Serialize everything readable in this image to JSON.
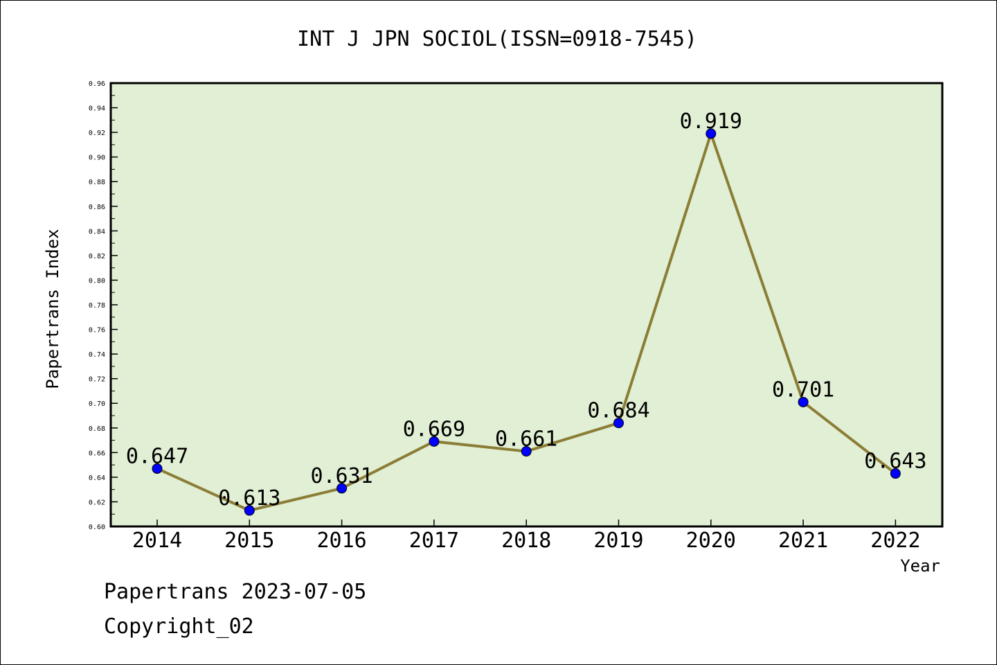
{
  "chart_data": {
    "type": "line",
    "title": "INT J JPN SOCIOL(ISSN=0918-7545)",
    "xlabel": "Year",
    "ylabel": "Papertrans Index",
    "categories": [
      "2014",
      "2015",
      "2016",
      "2017",
      "2018",
      "2019",
      "2020",
      "2021",
      "2022"
    ],
    "values": [
      0.647,
      0.613,
      0.631,
      0.669,
      0.661,
      0.684,
      0.919,
      0.701,
      0.643
    ],
    "data_labels": [
      "0.647",
      "0.613",
      "0.631",
      "0.669",
      "0.661",
      "0.684",
      "0.919",
      "0.701",
      "0.643"
    ],
    "ylim": [
      0.6,
      0.96
    ],
    "yticks": [
      "0.60",
      "0.62",
      "0.64",
      "0.66",
      "0.68",
      "0.70",
      "0.72",
      "0.74",
      "0.76",
      "0.78",
      "0.80",
      "0.82",
      "0.84",
      "0.86",
      "0.88",
      "0.90",
      "0.92",
      "0.94",
      "0.96"
    ],
    "grid": false,
    "colors": {
      "plot_background": "#e1efd4",
      "line": "#8b7d36",
      "marker": "#0000ff"
    }
  },
  "footer": {
    "date_line": "Papertrans 2023-07-05",
    "copyright": "Copyright_02"
  }
}
